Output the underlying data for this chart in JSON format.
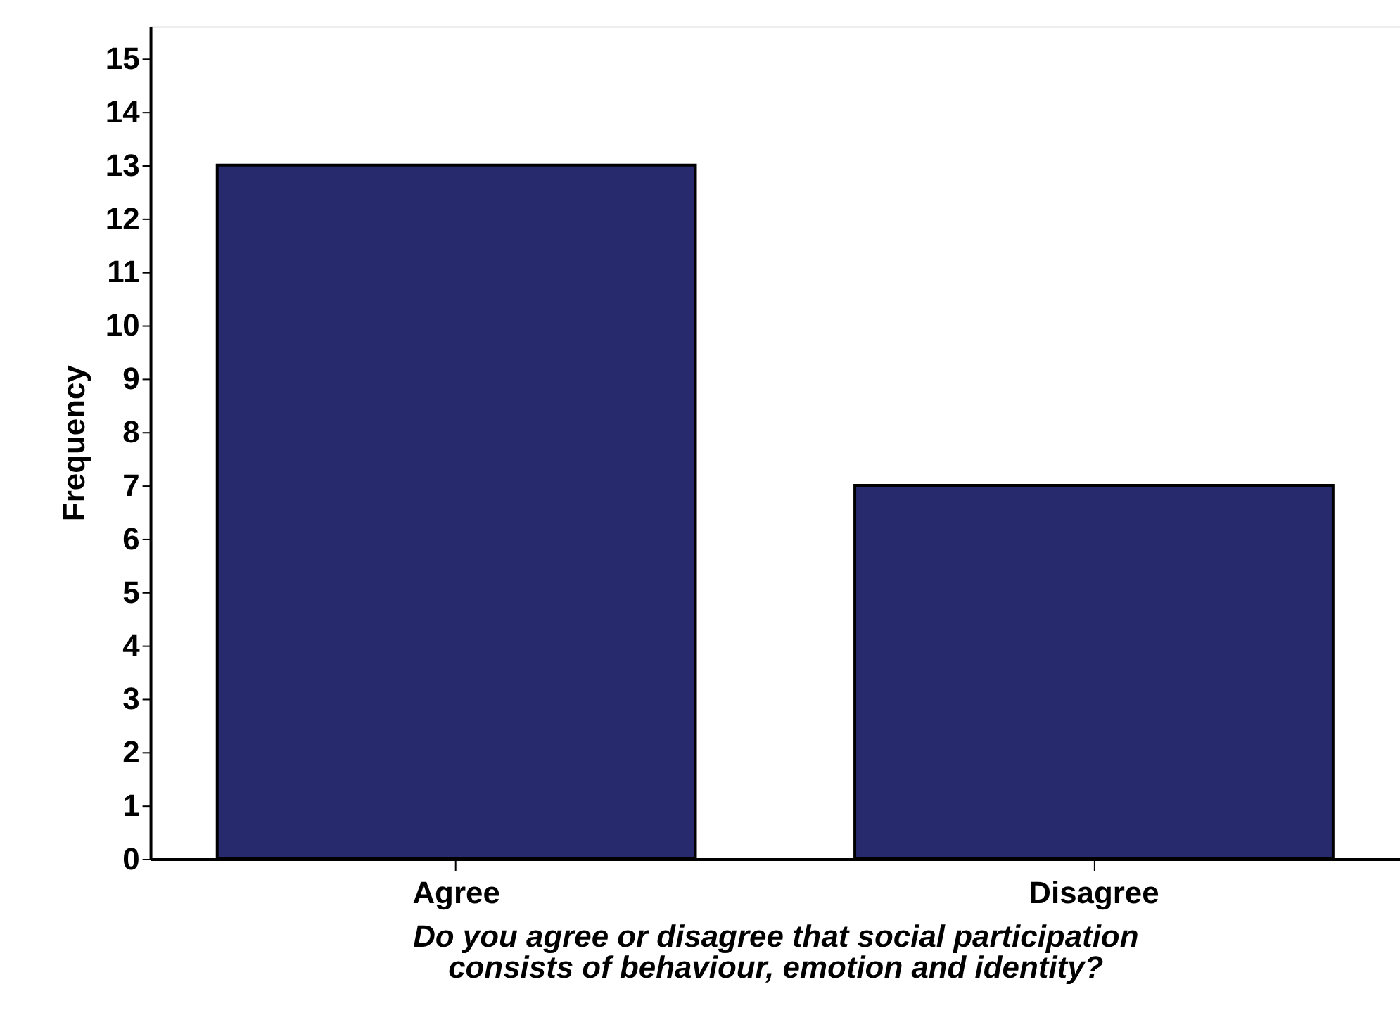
{
  "chart_data": {
    "type": "bar",
    "categories": [
      "Agree",
      "Disagree"
    ],
    "values": [
      13,
      7
    ],
    "color": "#282a6e",
    "xlabel": "Do you agree or disagree that social participation\nconsists of behaviour, emotion and identity?",
    "ylabel": "Frequency",
    "ylim": [
      0,
      15.6
    ],
    "yticks": [
      0,
      1,
      2,
      3,
      4,
      5,
      6,
      7,
      8,
      9,
      10,
      11,
      12,
      13,
      14,
      15
    ],
    "grid": false
  }
}
